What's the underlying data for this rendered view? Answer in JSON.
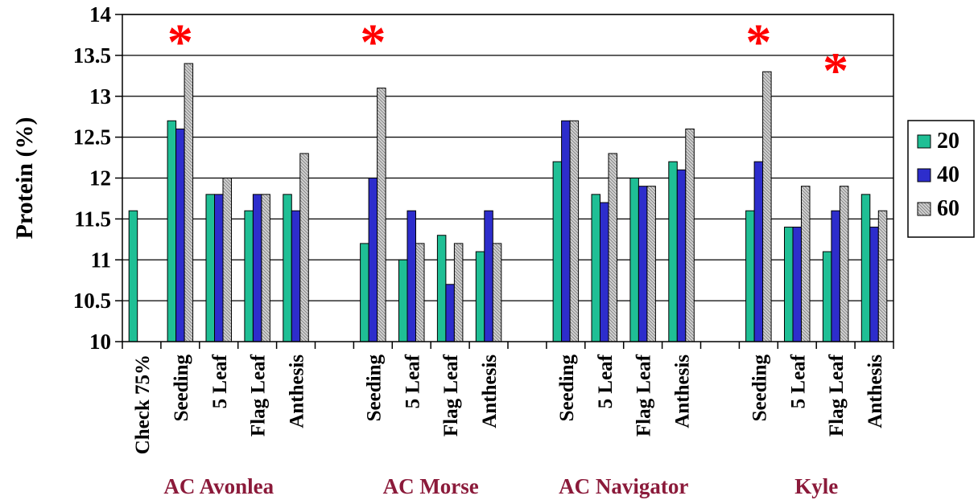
{
  "chart_data": {
    "type": "bar",
    "title": "",
    "xlabel": "",
    "ylabel": "Protein (%)",
    "ylim": [
      10,
      14
    ],
    "yticks": [
      "10",
      "10.5",
      "11",
      "11.5",
      "12",
      "12.5",
      "13",
      "13.5",
      "14"
    ],
    "grid": true,
    "legend_position": "right",
    "categories": [
      "Check 75%",
      "Seeding",
      "5 Leaf",
      "Flag Leaf",
      "Anthesis",
      "",
      "Seeding",
      "5 Leaf",
      "Flag Leaf",
      "Anthesis",
      "",
      "Seeding",
      "5 Leaf",
      "Flag Leaf",
      "Anthesis",
      "",
      "Seeding",
      "5 Leaf",
      "Flag Leaf",
      "Anthesis"
    ],
    "groups": [
      {
        "label": "AC Avonlea",
        "from": 0,
        "to": 4
      },
      {
        "label": "AC Morse",
        "from": 6,
        "to": 9
      },
      {
        "label": "AC Navigator",
        "from": 11,
        "to": 14
      },
      {
        "label": "Kyle",
        "from": 16,
        "to": 19
      }
    ],
    "series": [
      {
        "name": "20",
        "color": "#1fbf95",
        "pattern": "solid",
        "values": [
          11.6,
          12.7,
          11.8,
          11.6,
          11.8,
          null,
          11.2,
          11.0,
          11.3,
          11.1,
          null,
          12.2,
          11.8,
          12.0,
          12.2,
          null,
          11.6,
          11.4,
          11.1,
          11.8
        ]
      },
      {
        "name": "40",
        "color": "#2d2dcc",
        "pattern": "solid",
        "values": [
          null,
          12.6,
          11.8,
          11.8,
          11.6,
          null,
          12.0,
          11.6,
          10.7,
          11.6,
          null,
          12.7,
          11.7,
          11.9,
          12.1,
          null,
          12.2,
          11.4,
          11.6,
          11.4
        ]
      },
      {
        "name": "60",
        "color": "#c8c8c8",
        "pattern": "hatched",
        "values": [
          null,
          13.4,
          12.0,
          11.8,
          12.3,
          null,
          13.1,
          11.2,
          11.2,
          11.2,
          null,
          12.7,
          12.3,
          11.9,
          12.6,
          null,
          13.3,
          11.9,
          11.9,
          11.6
        ]
      }
    ],
    "annotations": [
      {
        "text": "*",
        "category": 1,
        "y": 13.75,
        "color": "#ff0000"
      },
      {
        "text": "*",
        "category": 6,
        "y": 13.75,
        "color": "#ff0000"
      },
      {
        "text": "*",
        "category": 16,
        "y": 13.75,
        "color": "#ff0000"
      },
      {
        "text": "*",
        "category": 18,
        "y": 13.4,
        "color": "#ff0000"
      }
    ]
  }
}
